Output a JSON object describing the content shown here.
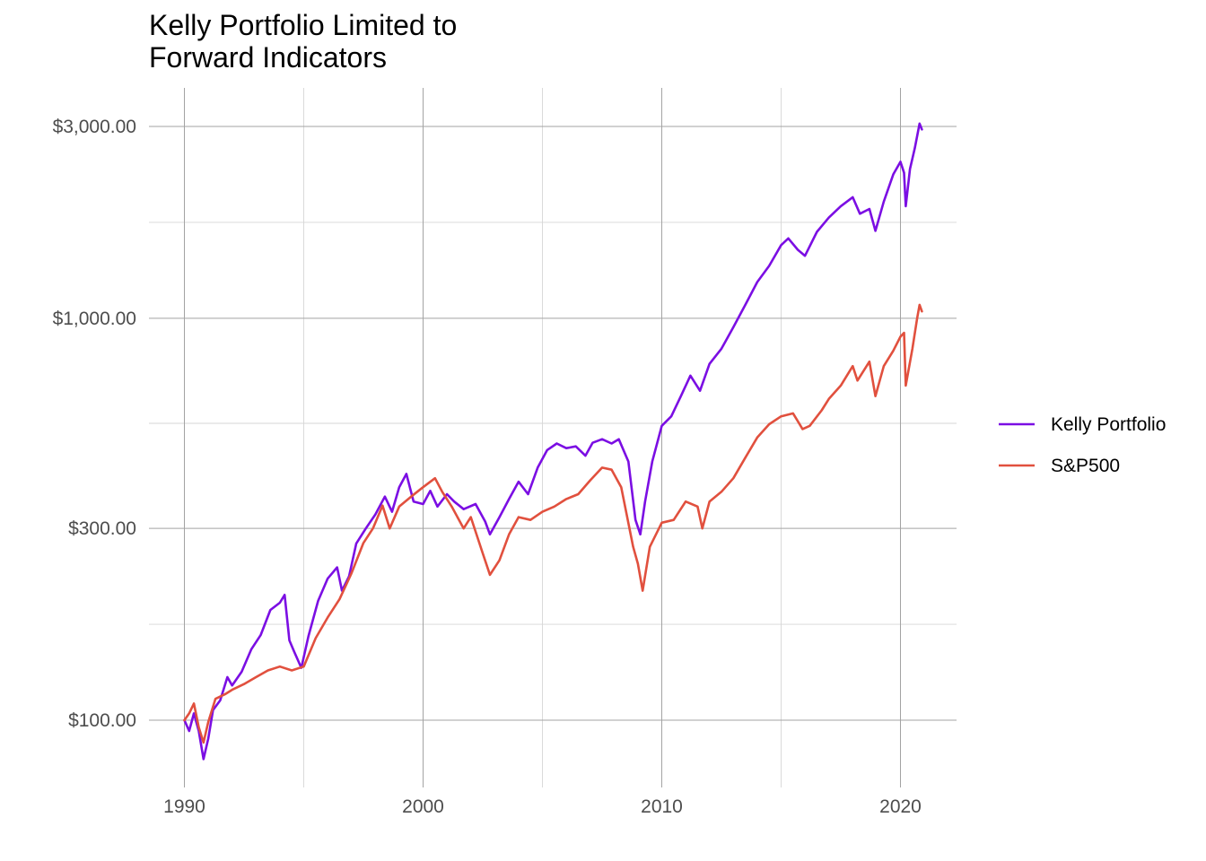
{
  "chart_data": {
    "type": "line",
    "title": "Kelly Portfolio Limited to\nForward Indicators",
    "xlabel": "",
    "ylabel": "",
    "x_range": [
      1989.5,
      2022.3
    ],
    "y_range": [
      75,
      3800
    ],
    "y_scale": "log",
    "x_ticks": [
      {
        "value": 1990,
        "label": "1990"
      },
      {
        "value": 2000,
        "label": "2000"
      },
      {
        "value": 2010,
        "label": "2010"
      },
      {
        "value": 2020,
        "label": "2020"
      }
    ],
    "x_minor_ticks": [
      1995,
      2005,
      2015
    ],
    "y_ticks": [
      {
        "value": 100,
        "label": "$100.00"
      },
      {
        "value": 300,
        "label": "$300.00"
      },
      {
        "value": 1000,
        "label": "$1,000.00"
      },
      {
        "value": 3000,
        "label": "$3,000.00"
      }
    ],
    "y_minor_ticks": [
      173.2,
      547.7,
      1732.1
    ],
    "grid": true,
    "legend_position": "right",
    "series": [
      {
        "name": "Kelly Portfolio",
        "color": "#7b0ee3",
        "points": [
          [
            1990.0,
            100
          ],
          [
            1990.2,
            94
          ],
          [
            1990.4,
            104
          ],
          [
            1990.6,
            94
          ],
          [
            1990.8,
            80
          ],
          [
            1991.0,
            90
          ],
          [
            1991.2,
            106
          ],
          [
            1991.5,
            112
          ],
          [
            1991.8,
            128
          ],
          [
            1992.0,
            122
          ],
          [
            1992.4,
            132
          ],
          [
            1992.8,
            150
          ],
          [
            1993.2,
            163
          ],
          [
            1993.6,
            188
          ],
          [
            1994.0,
            196
          ],
          [
            1994.2,
            205
          ],
          [
            1994.4,
            158
          ],
          [
            1994.6,
            148
          ],
          [
            1994.9,
            135
          ],
          [
            1995.2,
            162
          ],
          [
            1995.6,
            198
          ],
          [
            1996.0,
            225
          ],
          [
            1996.4,
            240
          ],
          [
            1996.6,
            210
          ],
          [
            1996.9,
            228
          ],
          [
            1997.2,
            275
          ],
          [
            1997.6,
            300
          ],
          [
            1998.0,
            325
          ],
          [
            1998.4,
            360
          ],
          [
            1998.7,
            330
          ],
          [
            1999.0,
            380
          ],
          [
            1999.3,
            410
          ],
          [
            1999.6,
            350
          ],
          [
            2000.0,
            345
          ],
          [
            2000.3,
            372
          ],
          [
            2000.6,
            340
          ],
          [
            2001.0,
            365
          ],
          [
            2001.3,
            350
          ],
          [
            2001.7,
            335
          ],
          [
            2002.2,
            345
          ],
          [
            2002.6,
            312
          ],
          [
            2002.8,
            290
          ],
          [
            2003.2,
            320
          ],
          [
            2003.6,
            355
          ],
          [
            2004.0,
            392
          ],
          [
            2004.4,
            365
          ],
          [
            2004.8,
            425
          ],
          [
            2005.2,
            470
          ],
          [
            2005.6,
            488
          ],
          [
            2006.0,
            475
          ],
          [
            2006.4,
            480
          ],
          [
            2006.8,
            455
          ],
          [
            2007.1,
            490
          ],
          [
            2007.5,
            500
          ],
          [
            2007.9,
            488
          ],
          [
            2008.2,
            500
          ],
          [
            2008.6,
            440
          ],
          [
            2008.9,
            315
          ],
          [
            2009.1,
            290
          ],
          [
            2009.3,
            350
          ],
          [
            2009.6,
            440
          ],
          [
            2010.0,
            540
          ],
          [
            2010.4,
            570
          ],
          [
            2010.8,
            640
          ],
          [
            2011.2,
            720
          ],
          [
            2011.6,
            660
          ],
          [
            2012.0,
            770
          ],
          [
            2012.5,
            840
          ],
          [
            2013.0,
            950
          ],
          [
            2013.5,
            1080
          ],
          [
            2014.0,
            1230
          ],
          [
            2014.5,
            1350
          ],
          [
            2015.0,
            1520
          ],
          [
            2015.3,
            1580
          ],
          [
            2015.7,
            1480
          ],
          [
            2016.0,
            1430
          ],
          [
            2016.5,
            1640
          ],
          [
            2017.0,
            1780
          ],
          [
            2017.5,
            1900
          ],
          [
            2018.0,
            2000
          ],
          [
            2018.3,
            1820
          ],
          [
            2018.7,
            1870
          ],
          [
            2018.95,
            1650
          ],
          [
            2019.3,
            1950
          ],
          [
            2019.7,
            2280
          ],
          [
            2020.0,
            2450
          ],
          [
            2020.15,
            2300
          ],
          [
            2020.22,
            1900
          ],
          [
            2020.4,
            2350
          ],
          [
            2020.6,
            2650
          ],
          [
            2020.8,
            3050
          ],
          [
            2020.9,
            2950
          ]
        ]
      },
      {
        "name": "S&P500",
        "color": "#e1503e",
        "points": [
          [
            1990.0,
            100
          ],
          [
            1990.2,
            104
          ],
          [
            1990.4,
            110
          ],
          [
            1990.6,
            96
          ],
          [
            1990.8,
            88
          ],
          [
            1991.0,
            99
          ],
          [
            1991.3,
            113
          ],
          [
            1991.7,
            116
          ],
          [
            1992.0,
            119
          ],
          [
            1992.5,
            123
          ],
          [
            1993.0,
            128
          ],
          [
            1993.5,
            133
          ],
          [
            1994.0,
            136
          ],
          [
            1994.5,
            133
          ],
          [
            1995.0,
            136
          ],
          [
            1995.5,
            160
          ],
          [
            1996.0,
            180
          ],
          [
            1996.5,
            200
          ],
          [
            1997.0,
            232
          ],
          [
            1997.5,
            276
          ],
          [
            1997.9,
            300
          ],
          [
            1998.3,
            342
          ],
          [
            1998.6,
            300
          ],
          [
            1999.0,
            340
          ],
          [
            1999.5,
            360
          ],
          [
            2000.0,
            380
          ],
          [
            2000.5,
            400
          ],
          [
            2000.8,
            370
          ],
          [
            2001.2,
            340
          ],
          [
            2001.7,
            300
          ],
          [
            2002.0,
            320
          ],
          [
            2002.5,
            260
          ],
          [
            2002.8,
            230
          ],
          [
            2003.2,
            250
          ],
          [
            2003.6,
            290
          ],
          [
            2004.0,
            320
          ],
          [
            2004.5,
            315
          ],
          [
            2005.0,
            330
          ],
          [
            2005.5,
            340
          ],
          [
            2006.0,
            355
          ],
          [
            2006.5,
            365
          ],
          [
            2007.0,
            395
          ],
          [
            2007.5,
            425
          ],
          [
            2007.9,
            420
          ],
          [
            2008.3,
            380
          ],
          [
            2008.8,
            270
          ],
          [
            2009.0,
            245
          ],
          [
            2009.2,
            210
          ],
          [
            2009.5,
            270
          ],
          [
            2010.0,
            310
          ],
          [
            2010.5,
            315
          ],
          [
            2011.0,
            350
          ],
          [
            2011.5,
            340
          ],
          [
            2011.7,
            300
          ],
          [
            2012.0,
            350
          ],
          [
            2012.5,
            370
          ],
          [
            2013.0,
            400
          ],
          [
            2013.5,
            450
          ],
          [
            2014.0,
            505
          ],
          [
            2014.5,
            545
          ],
          [
            2015.0,
            570
          ],
          [
            2015.5,
            580
          ],
          [
            2015.9,
            530
          ],
          [
            2016.2,
            540
          ],
          [
            2016.7,
            590
          ],
          [
            2017.0,
            630
          ],
          [
            2017.5,
            680
          ],
          [
            2018.0,
            760
          ],
          [
            2018.2,
            700
          ],
          [
            2018.7,
            780
          ],
          [
            2018.95,
            640
          ],
          [
            2019.3,
            760
          ],
          [
            2019.7,
            830
          ],
          [
            2020.0,
            900
          ],
          [
            2020.15,
            920
          ],
          [
            2020.22,
            680
          ],
          [
            2020.5,
            840
          ],
          [
            2020.7,
            1000
          ],
          [
            2020.8,
            1080
          ],
          [
            2020.9,
            1040
          ]
        ]
      }
    ]
  }
}
